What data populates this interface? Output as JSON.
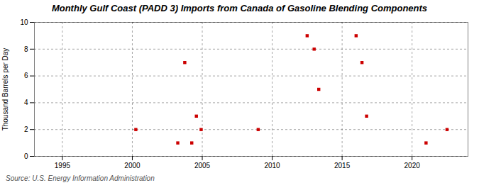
{
  "chart_data": {
    "type": "scatter",
    "title": "Monthly Gulf Coast (PADD 3) Imports from Canada of Gasoline Blending Components",
    "ylabel": "Thousand Barrels per Day",
    "source": "Source: U.S. Energy Information Administration",
    "x": [
      2000.25,
      2003.25,
      2003.75,
      2004.25,
      2004.58,
      2004.92,
      2009.0,
      2012.5,
      2013.0,
      2013.33,
      2016.0,
      2016.42,
      2016.75,
      2021.0,
      2022.5
    ],
    "values": [
      2,
      1,
      7,
      1,
      3,
      2,
      2,
      9,
      8,
      5,
      9,
      7,
      3,
      1,
      2
    ],
    "color": "#cc0000",
    "marker": "square",
    "xlim": [
      1993.0,
      2024.0
    ],
    "xticks": [
      1995,
      2000,
      2005,
      2010,
      2015,
      2020
    ],
    "ylim": [
      0,
      10
    ],
    "yticks": [
      0,
      2,
      4,
      6,
      8,
      10
    ],
    "grid": true
  }
}
